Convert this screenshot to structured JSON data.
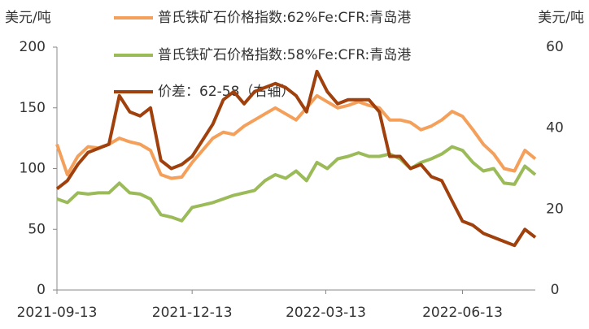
{
  "chart_data": {
    "type": "line",
    "ylabel": "美元/吨",
    "y2label": "美元/吨",
    "x": [
      "2021-09-13",
      "2021-09-20",
      "2021-09-27",
      "2021-10-04",
      "2021-10-11",
      "2021-10-18",
      "2021-10-25",
      "2021-11-01",
      "2021-11-08",
      "2021-11-15",
      "2021-11-22",
      "2021-11-29",
      "2021-12-06",
      "2021-12-13",
      "2021-12-20",
      "2021-12-27",
      "2022-01-03",
      "2022-01-10",
      "2022-01-17",
      "2022-01-24",
      "2022-01-31",
      "2022-02-07",
      "2022-02-14",
      "2022-02-21",
      "2022-02-28",
      "2022-03-07",
      "2022-03-14",
      "2022-03-21",
      "2022-03-28",
      "2022-04-04",
      "2022-04-11",
      "2022-04-18",
      "2022-04-25",
      "2022-05-02",
      "2022-05-09",
      "2022-05-16",
      "2022-05-23",
      "2022-05-30",
      "2022-06-06",
      "2022-06-13",
      "2022-06-20",
      "2022-06-27",
      "2022-07-04",
      "2022-07-11",
      "2022-07-18",
      "2022-07-25",
      "2022-08-01"
    ],
    "series": [
      {
        "name": "普氏铁矿石价格指数:62%Fe:CFR:青岛港",
        "color": "#f5a05a",
        "values": [
          120,
          95,
          110,
          118,
          117,
          120,
          125,
          122,
          120,
          115,
          95,
          92,
          93,
          105,
          115,
          125,
          130,
          128,
          135,
          140,
          145,
          150,
          145,
          140,
          150,
          160,
          155,
          150,
          152,
          155,
          152,
          150,
          140,
          140,
          138,
          132,
          135,
          140,
          147,
          143,
          132,
          120,
          112,
          100,
          98,
          115,
          108
        ]
      },
      {
        "name": "普氏铁矿石价格指数:58%Fe:CFR:青岛港",
        "color": "#9bbb59",
        "values": [
          75,
          72,
          80,
          79,
          80,
          80,
          88,
          80,
          79,
          75,
          62,
          60,
          57,
          68,
          70,
          72,
          75,
          78,
          80,
          82,
          90,
          95,
          92,
          98,
          90,
          105,
          100,
          108,
          110,
          113,
          110,
          110,
          112,
          108,
          100,
          105,
          108,
          112,
          118,
          115,
          105,
          98,
          100,
          88,
          87,
          102,
          95
        ]
      },
      {
        "name": "价差：62-58（右轴）",
        "color": "#a0410d",
        "axis": "y2",
        "values": [
          25,
          27,
          31,
          34,
          35,
          36,
          48,
          44,
          43,
          45,
          32,
          30,
          31,
          33,
          37,
          41,
          47,
          49,
          46,
          49,
          50,
          51,
          50,
          48,
          44,
          54,
          49,
          46,
          47,
          47,
          47,
          44,
          33,
          33,
          30,
          31,
          28,
          27,
          22,
          17,
          16,
          14,
          13,
          12,
          11,
          15,
          13
        ]
      }
    ],
    "xlim": [
      "2021-09-13",
      "2022-08-01"
    ],
    "xticks": [
      "2021-09-13",
      "2021-12-13",
      "2022-03-13",
      "2022-06-13"
    ],
    "ylim": [
      0,
      200
    ],
    "yticks": [
      0,
      50,
      100,
      150,
      200
    ],
    "y2lim": [
      0,
      60
    ],
    "y2ticks": [
      0,
      20,
      40,
      60
    ],
    "legend": "top",
    "grid": false
  }
}
